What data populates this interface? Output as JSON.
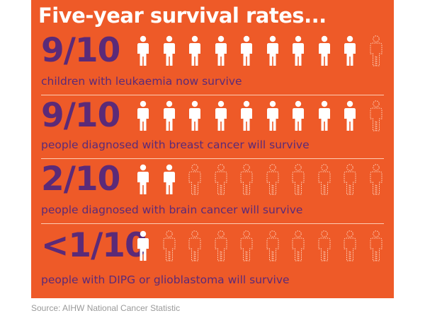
{
  "title": "Five-year survival rates...",
  "colors": {
    "background": "#ee5a28",
    "heading": "#ffffff",
    "ratio_text": "#5b2a78",
    "figure_survive": "#ffffff",
    "figure_not_survive_outline": "#ffd2bc"
  },
  "icon": "person-icon",
  "rows": [
    {
      "ratio": "9/10",
      "caption": "children with leukaemia now survive",
      "filled": 9,
      "total": 10
    },
    {
      "ratio": "9/10",
      "caption": "people diagnosed with breast cancer will survive",
      "filled": 9,
      "total": 10
    },
    {
      "ratio": "2/10",
      "caption": "people diagnosed with brain cancer will survive",
      "filled": 2,
      "total": 10
    },
    {
      "ratio": "<1/10",
      "caption": "people with DIPG or glioblastoma will survive",
      "filled": 1,
      "total": 10
    }
  ],
  "source": "Source: AIHW National Cancer Statistic"
}
